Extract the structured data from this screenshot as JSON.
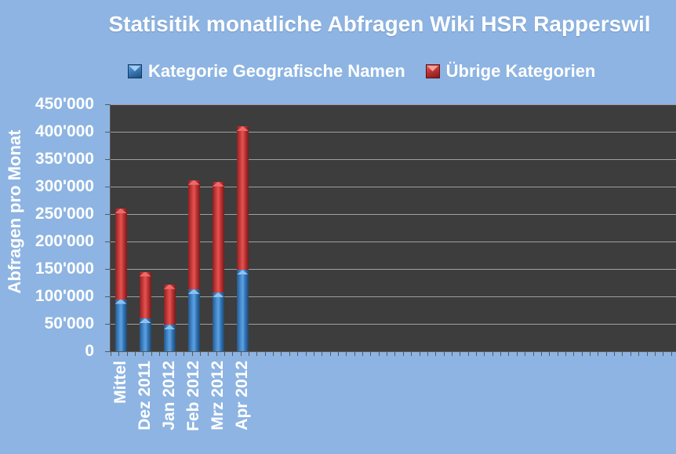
{
  "chart_data": {
    "type": "bar",
    "stacked": true,
    "title": "Statisitik monatliche Abfragen Wiki HSR Rapperswil",
    "ylabel": "Abfragen pro Monat",
    "xlabel": "",
    "categories": [
      "Mittel",
      "Dez 2011",
      "Jan 2012",
      "Feb 2012",
      "Mrz 2012",
      "Apr 2012"
    ],
    "series": [
      {
        "name": "Kategorie Geografische Namen",
        "color": "#3a7cbf",
        "values": [
          95000,
          60000,
          48000,
          113000,
          107000,
          148000
        ]
      },
      {
        "name": "Übrige Kategorien",
        "color": "#c23434",
        "values": [
          165000,
          85000,
          74000,
          199000,
          202000,
          262000
        ]
      }
    ],
    "stack_totals": [
      260000,
      145000,
      122000,
      312000,
      309000,
      410000
    ],
    "ylim": [
      0,
      450000
    ],
    "ytick_step": 50000,
    "ytick_labels": [
      "0",
      "50'000",
      "100'000",
      "150'000",
      "200'000",
      "250'000",
      "300'000",
      "350'000",
      "400'000",
      "450'000"
    ],
    "grid": true,
    "legend_position": "top"
  },
  "colors": {
    "background": "#8db4e2",
    "plot_background": "#3d3d3d",
    "gridline": "#a0a0a0",
    "axis": "#595959",
    "text": "#ffffff",
    "bar_blue": "#3a7cbf",
    "bar_red": "#c23434"
  }
}
